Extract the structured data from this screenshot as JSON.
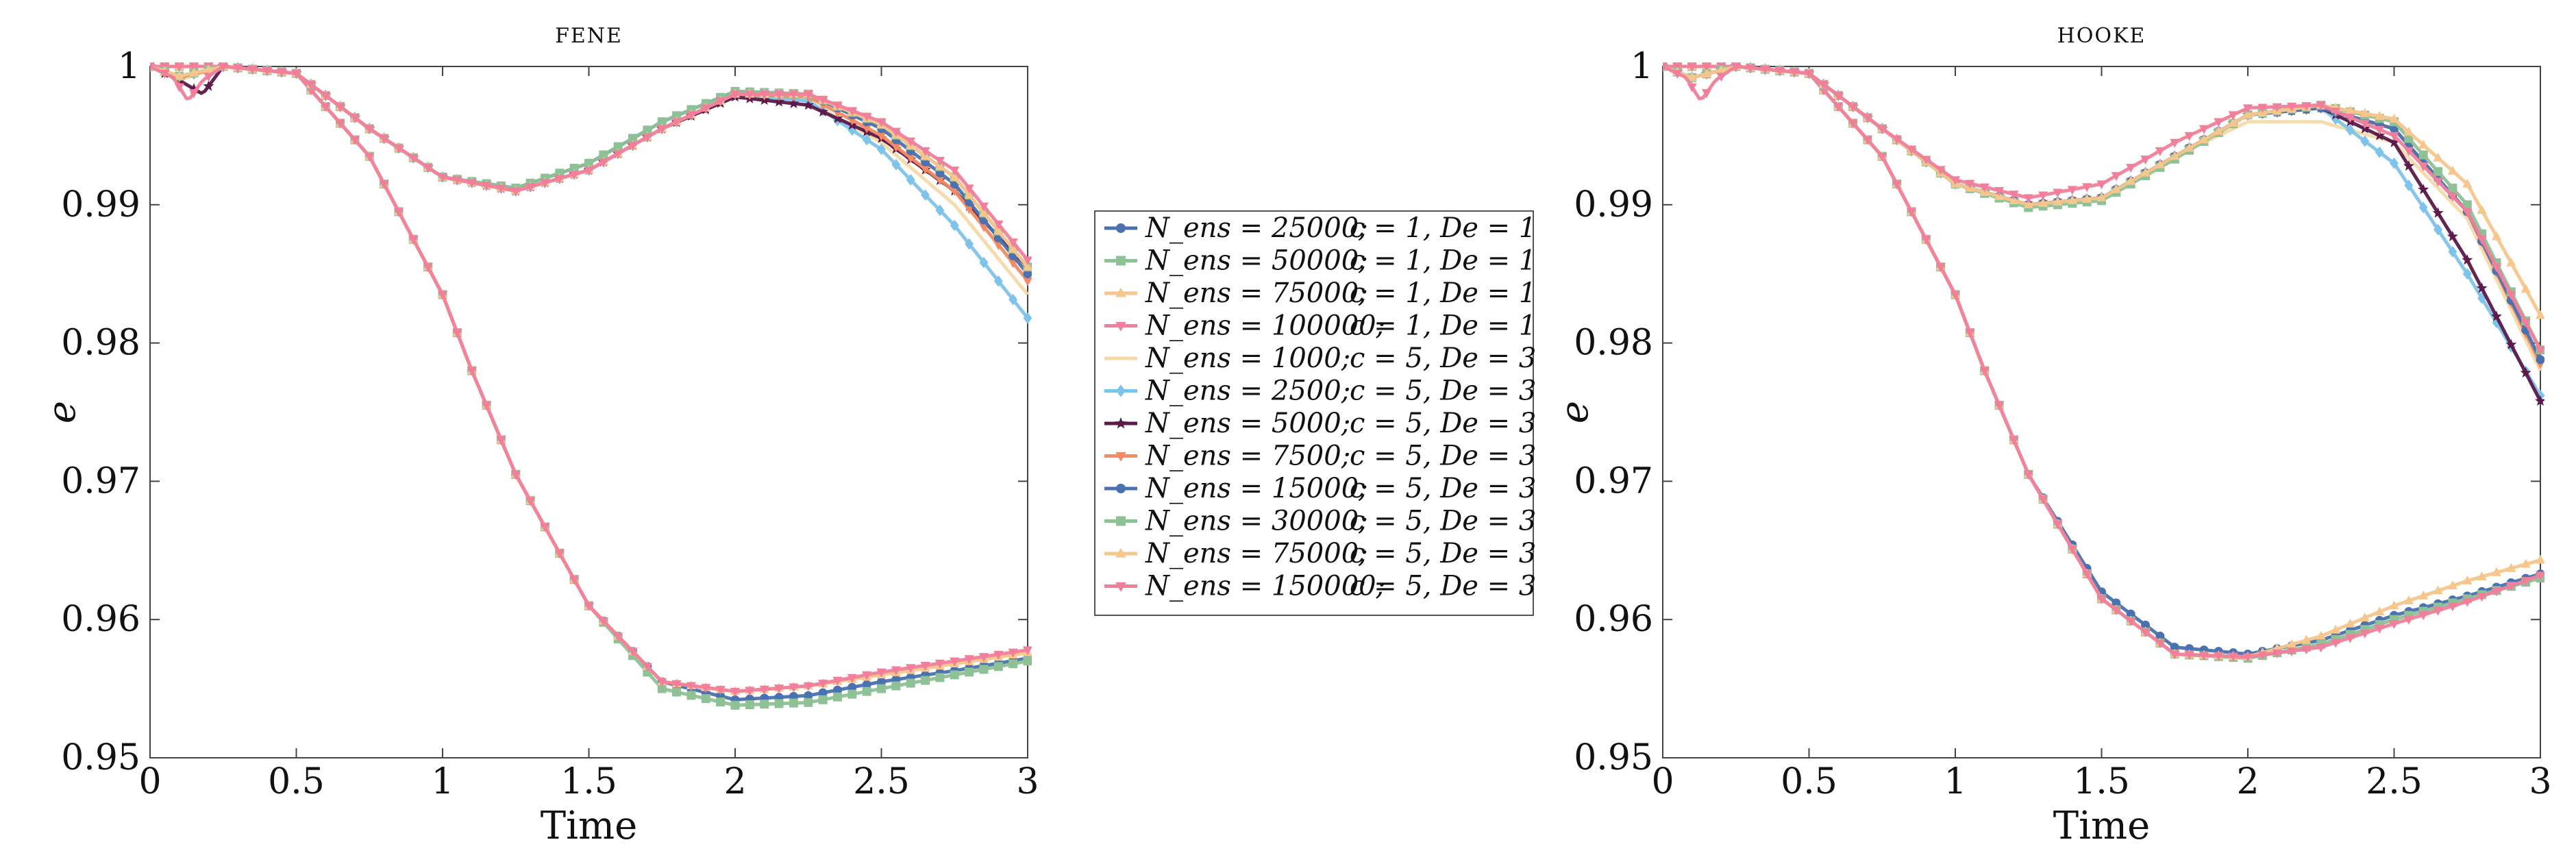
{
  "chart_data": [
    {
      "type": "line",
      "title": "FENE",
      "xlabel": "Time",
      "ylabel": "e",
      "xlim": [
        0,
        3
      ],
      "ylim": [
        0.95,
        1.0
      ],
      "xticks": [
        "0",
        "0.5",
        "1",
        "1.5",
        "2",
        "2.5",
        "3"
      ],
      "yticks": [
        "0.95",
        "0.96",
        "0.97",
        "0.98",
        "0.99",
        "1"
      ],
      "series": [
        {
          "name": "N_ens = 25000; c = 1, De = 1",
          "x": [
            0,
            0.25,
            0.5,
            0.75,
            1.0,
            1.1,
            1.25,
            1.5,
            1.75,
            2.0,
            2.25,
            2.5,
            2.75,
            3.0
          ],
          "y": [
            1.0,
            1.0,
            0.9995,
            0.9935,
            0.9835,
            0.978,
            0.9705,
            0.961,
            0.9555,
            0.9542,
            0.9545,
            0.9555,
            0.9563,
            0.9572
          ]
        },
        {
          "name": "N_ens = 50000; c = 1, De = 1",
          "x": [
            0,
            0.25,
            0.5,
            0.75,
            1.0,
            1.1,
            1.25,
            1.5,
            1.75,
            2.0,
            2.25,
            2.5,
            2.75,
            3.0
          ],
          "y": [
            1.0,
            1.0,
            0.9995,
            0.9935,
            0.9835,
            0.978,
            0.9705,
            0.961,
            0.955,
            0.9538,
            0.954,
            0.955,
            0.956,
            0.957
          ]
        },
        {
          "name": "N_ens = 75000; c = 1, De = 1",
          "x": [
            0,
            0.25,
            0.5,
            0.75,
            1.0,
            1.1,
            1.25,
            1.5,
            1.75,
            2.0,
            2.25,
            2.5,
            2.75,
            3.0
          ],
          "y": [
            1.0,
            1.0,
            0.9995,
            0.9935,
            0.9835,
            0.978,
            0.9705,
            0.961,
            0.9555,
            0.9548,
            0.9552,
            0.956,
            0.9568,
            0.9576
          ]
        },
        {
          "name": "N_ens = 100000; c = 1, De = 1",
          "x": [
            0,
            0.25,
            0.5,
            0.75,
            1.0,
            1.1,
            1.25,
            1.5,
            1.75,
            2.0,
            2.25,
            2.5,
            2.75,
            3.0
          ],
          "y": [
            1.0,
            1.0,
            0.9995,
            0.9935,
            0.9835,
            0.978,
            0.9705,
            0.961,
            0.9555,
            0.9548,
            0.9552,
            0.9562,
            0.957,
            0.9578
          ]
        },
        {
          "name": "N_ens = 1000; c = 5, De = 3",
          "x": [
            0,
            0.1,
            0.25,
            0.5,
            0.75,
            1.0,
            1.25,
            1.5,
            1.75,
            2.0,
            2.25,
            2.5,
            2.75,
            3.0
          ],
          "y": [
            1.0,
            0.999,
            1.0,
            0.9995,
            0.9955,
            0.992,
            0.991,
            0.9925,
            0.9955,
            0.998,
            0.9975,
            0.9945,
            0.99,
            0.9835
          ]
        },
        {
          "name": "N_ens = 2500; c = 5, De = 3",
          "x": [
            0,
            0.1,
            0.25,
            0.5,
            0.75,
            1.0,
            1.25,
            1.5,
            1.75,
            2.0,
            2.25,
            2.5,
            2.75,
            3.0
          ],
          "y": [
            1.0,
            0.9992,
            1.0,
            0.9995,
            0.9955,
            0.992,
            0.991,
            0.9925,
            0.9955,
            0.998,
            0.9975,
            0.994,
            0.9885,
            0.9818
          ]
        },
        {
          "name": "N_ens = 5000; c = 5, De = 3",
          "x": [
            0,
            0.1,
            0.14,
            0.18,
            0.25,
            0.5,
            0.75,
            1.0,
            1.25,
            1.5,
            1.75,
            2.0,
            2.25,
            2.5,
            2.75,
            3.0
          ],
          "y": [
            1.0,
            0.999,
            0.9985,
            0.998,
            1.0,
            0.9995,
            0.9955,
            0.992,
            0.991,
            0.9925,
            0.9955,
            0.9978,
            0.9972,
            0.9948,
            0.991,
            0.9855
          ]
        },
        {
          "name": "N_ens = 7500; c = 5, De = 3",
          "x": [
            0,
            0.1,
            0.25,
            0.5,
            0.75,
            1.0,
            1.25,
            1.5,
            1.75,
            2.0,
            2.25,
            2.5,
            2.75,
            3.0
          ],
          "y": [
            1.0,
            0.9992,
            1.0,
            0.9995,
            0.9955,
            0.992,
            0.991,
            0.9925,
            0.9955,
            0.998,
            0.9978,
            0.995,
            0.991,
            0.9845
          ]
        },
        {
          "name": "N_ens = 15000; c = 5, De = 3",
          "x": [
            0,
            0.1,
            0.25,
            0.5,
            0.75,
            1.0,
            1.25,
            1.5,
            1.75,
            2.0,
            2.25,
            2.5,
            2.75,
            3.0
          ],
          "y": [
            1.0,
            0.9993,
            1.0,
            0.9995,
            0.9955,
            0.992,
            0.9912,
            0.993,
            0.996,
            0.9982,
            0.998,
            0.9955,
            0.9915,
            0.985
          ]
        },
        {
          "name": "N_ens = 30000; c = 5, De = 3",
          "x": [
            0,
            0.1,
            0.25,
            0.5,
            0.75,
            1.0,
            1.25,
            1.5,
            1.75,
            2.0,
            2.25,
            2.5,
            2.75,
            3.0
          ],
          "y": [
            1.0,
            0.9993,
            1.0,
            0.9995,
            0.9955,
            0.992,
            0.9912,
            0.993,
            0.996,
            0.9982,
            0.998,
            0.9958,
            0.992,
            0.9855
          ]
        },
        {
          "name": "N_ens = 75000; c = 5, De = 3",
          "x": [
            0,
            0.1,
            0.25,
            0.5,
            0.75,
            1.0,
            1.25,
            1.5,
            1.75,
            2.0,
            2.25,
            2.5,
            2.75,
            3.0
          ],
          "y": [
            1.0,
            0.9993,
            1.0,
            0.9995,
            0.9955,
            0.992,
            0.991,
            0.9925,
            0.9955,
            0.998,
            0.998,
            0.9958,
            0.992,
            0.9855
          ]
        },
        {
          "name": "N_ens = 150000; c = 5, De = 3",
          "x": [
            0,
            0.08,
            0.13,
            0.18,
            0.25,
            0.5,
            0.75,
            1.0,
            1.25,
            1.5,
            1.75,
            2.0,
            2.25,
            2.5,
            2.75,
            3.0
          ],
          "y": [
            1.0,
            0.9992,
            0.9975,
            0.999,
            1.0,
            0.9995,
            0.9955,
            0.992,
            0.991,
            0.9925,
            0.9955,
            0.998,
            0.998,
            0.996,
            0.9925,
            0.986
          ]
        }
      ]
    },
    {
      "type": "line",
      "title": "HOOKE",
      "xlabel": "Time",
      "ylabel": "e",
      "xlim": [
        0,
        3
      ],
      "ylim": [
        0.95,
        1.0
      ],
      "xticks": [
        "0",
        "0.5",
        "1",
        "1.5",
        "2",
        "2.5",
        "3"
      ],
      "yticks": [
        "0.95",
        "0.96",
        "0.97",
        "0.98",
        "0.99",
        "1"
      ],
      "series": [
        {
          "name": "N_ens = 25000; c = 1, De = 1",
          "x": [
            0,
            0.25,
            0.5,
            0.75,
            1.0,
            1.1,
            1.25,
            1.5,
            1.75,
            2.0,
            2.25,
            2.5,
            2.75,
            3.0
          ],
          "y": [
            1.0,
            1.0,
            0.9995,
            0.9935,
            0.9835,
            0.978,
            0.9705,
            0.962,
            0.958,
            0.9575,
            0.9585,
            0.9603,
            0.9617,
            0.9633
          ]
        },
        {
          "name": "N_ens = 50000; c = 1, De = 1",
          "x": [
            0,
            0.25,
            0.5,
            0.75,
            1.0,
            1.1,
            1.25,
            1.5,
            1.75,
            2.0,
            2.25,
            2.5,
            2.75,
            3.0
          ],
          "y": [
            1.0,
            1.0,
            0.9995,
            0.9935,
            0.9835,
            0.978,
            0.9705,
            0.9615,
            0.9575,
            0.9572,
            0.9582,
            0.96,
            0.9615,
            0.963
          ]
        },
        {
          "name": "N_ens = 75000; c = 1, De = 1",
          "x": [
            0,
            0.25,
            0.5,
            0.75,
            1.0,
            1.1,
            1.25,
            1.5,
            1.75,
            2.0,
            2.25,
            2.5,
            2.75,
            3.0
          ],
          "y": [
            1.0,
            1.0,
            0.9995,
            0.9935,
            0.9835,
            0.978,
            0.9705,
            0.9615,
            0.9575,
            0.9573,
            0.9588,
            0.961,
            0.9628,
            0.9643
          ]
        },
        {
          "name": "N_ens = 100000; c = 1, De = 1",
          "x": [
            0,
            0.25,
            0.5,
            0.75,
            1.0,
            1.1,
            1.25,
            1.5,
            1.75,
            2.0,
            2.25,
            2.5,
            2.75,
            3.0
          ],
          "y": [
            1.0,
            1.0,
            0.9995,
            0.9935,
            0.9835,
            0.978,
            0.9705,
            0.9615,
            0.9575,
            0.9573,
            0.958,
            0.9597,
            0.9613,
            0.9632
          ]
        },
        {
          "name": "N_ens = 1000; c = 5, De = 3",
          "x": [
            0,
            0.1,
            0.25,
            0.5,
            0.75,
            1.0,
            1.25,
            1.5,
            1.75,
            2.0,
            2.25,
            2.5,
            2.75,
            3.0
          ],
          "y": [
            1.0,
            0.9992,
            1.0,
            0.9995,
            0.9955,
            0.9915,
            0.99,
            0.9905,
            0.9935,
            0.996,
            0.996,
            0.9945,
            0.989,
            0.978
          ]
        },
        {
          "name": "N_ens = 2500; c = 5, De = 3",
          "x": [
            0,
            0.1,
            0.25,
            0.5,
            0.75,
            1.0,
            1.25,
            1.5,
            1.75,
            2.0,
            2.25,
            2.5,
            2.75,
            3.0
          ],
          "y": [
            1.0,
            0.9992,
            1.0,
            0.9995,
            0.9955,
            0.9915,
            0.99,
            0.9905,
            0.9935,
            0.9965,
            0.997,
            0.993,
            0.985,
            0.9762
          ]
        },
        {
          "name": "N_ens = 5000; c = 5, De = 3",
          "x": [
            0,
            0.1,
            0.25,
            0.5,
            0.75,
            1.0,
            1.25,
            1.5,
            1.75,
            2.0,
            2.25,
            2.5,
            2.75,
            3.0
          ],
          "y": [
            1.0,
            0.9992,
            1.0,
            0.9995,
            0.9955,
            0.9915,
            0.99,
            0.9905,
            0.9935,
            0.9965,
            0.997,
            0.9945,
            0.986,
            0.9758
          ]
        },
        {
          "name": "N_ens = 7500; c = 5, De = 3",
          "x": [
            0,
            0.1,
            0.25,
            0.5,
            0.75,
            1.0,
            1.25,
            1.5,
            1.75,
            2.0,
            2.25,
            2.5,
            2.75,
            3.0
          ],
          "y": [
            1.0,
            0.9992,
            1.0,
            0.9995,
            0.9955,
            0.9915,
            0.99,
            0.9905,
            0.9935,
            0.9965,
            0.997,
            0.9955,
            0.9895,
            0.9785
          ]
        },
        {
          "name": "N_ens = 15000; c = 5, De = 3",
          "x": [
            0,
            0.1,
            0.25,
            0.5,
            0.75,
            1.0,
            1.25,
            1.5,
            1.75,
            2.0,
            2.25,
            2.5,
            2.75,
            3.0
          ],
          "y": [
            1.0,
            0.9992,
            1.0,
            0.9995,
            0.9955,
            0.9915,
            0.99,
            0.9905,
            0.9935,
            0.9965,
            0.997,
            0.9955,
            0.9895,
            0.9788
          ]
        },
        {
          "name": "N_ens = 30000; c = 5, De = 3",
          "x": [
            0,
            0.1,
            0.25,
            0.5,
            0.75,
            1.0,
            1.25,
            1.5,
            1.75,
            2.0,
            2.25,
            2.5,
            2.75,
            3.0
          ],
          "y": [
            1.0,
            0.9992,
            1.0,
            0.9995,
            0.9955,
            0.9915,
            0.9898,
            0.9903,
            0.9933,
            0.9965,
            0.9972,
            0.996,
            0.99,
            0.9795
          ]
        },
        {
          "name": "N_ens = 75000; c = 5, De = 3",
          "x": [
            0,
            0.1,
            0.25,
            0.5,
            0.75,
            1.0,
            1.25,
            1.5,
            1.75,
            2.0,
            2.25,
            2.5,
            2.75,
            3.0
          ],
          "y": [
            1.0,
            0.9992,
            1.0,
            0.9995,
            0.9955,
            0.9915,
            0.99,
            0.9905,
            0.9935,
            0.9965,
            0.9972,
            0.9962,
            0.9915,
            0.982
          ]
        },
        {
          "name": "N_ens = 150000; c = 5, De = 3",
          "x": [
            0,
            0.08,
            0.13,
            0.18,
            0.25,
            0.5,
            0.75,
            1.0,
            1.25,
            1.5,
            1.75,
            2.0,
            2.25,
            2.5,
            2.75,
            3.0
          ],
          "y": [
            1.0,
            0.9992,
            0.9975,
            0.999,
            1.0,
            0.9995,
            0.9955,
            0.9918,
            0.9905,
            0.9915,
            0.9945,
            0.997,
            0.9972,
            0.995,
            0.9895,
            0.9795
          ]
        }
      ]
    }
  ],
  "legend": {
    "entries": [
      {
        "label": "N_ens = 25000;",
        "params": "c = 1, De = 1",
        "color": "#4a72b0",
        "marker": "circle"
      },
      {
        "label": "N_ens = 50000;",
        "params": "c = 1, De = 1",
        "color": "#8fc196",
        "marker": "square"
      },
      {
        "label": "N_ens = 75000;",
        "params": "c = 1, De = 1",
        "color": "#f7c68c",
        "marker": "triangle"
      },
      {
        "label": "N_ens = 100000;",
        "params": "c = 1, De = 1",
        "color": "#f17f9b",
        "marker": "triangle-down"
      },
      {
        "label": "N_ens = 1000;",
        "params": "c = 5, De = 3",
        "color": "#f5d9a8",
        "marker": "none"
      },
      {
        "label": "N_ens = 2500;",
        "params": "c = 5, De = 3",
        "color": "#7ec3e9",
        "marker": "diamond"
      },
      {
        "label": "N_ens = 5000;",
        "params": "c = 5, De = 3",
        "color": "#5b1a4a",
        "marker": "star"
      },
      {
        "label": "N_ens = 7500;",
        "params": "c = 5, De = 3",
        "color": "#f28b63",
        "marker": "triangle-down"
      },
      {
        "label": "N_ens = 15000;",
        "params": "c = 5, De = 3",
        "color": "#4a72b0",
        "marker": "circle"
      },
      {
        "label": "N_ens = 30000;",
        "params": "c = 5, De = 3",
        "color": "#8fc196",
        "marker": "square"
      },
      {
        "label": "N_ens = 75000;",
        "params": "c = 5, De = 3",
        "color": "#f7c68c",
        "marker": "triangle"
      },
      {
        "label": "N_ens = 150000;",
        "params": "c = 5, De = 3",
        "color": "#f17f9b",
        "marker": "triangle-down"
      }
    ]
  }
}
